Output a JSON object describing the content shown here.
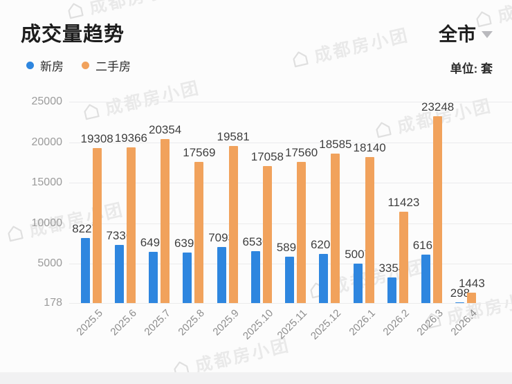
{
  "header": {
    "title": "成交量趋势",
    "region": "全市",
    "unit_label": "单位: 套"
  },
  "legend": [
    {
      "label": "新房",
      "color": "#2E86DF"
    },
    {
      "label": "二手房",
      "color": "#F1A25C"
    }
  ],
  "watermark": {
    "text": "成都房小团"
  },
  "chart_data": {
    "type": "bar",
    "title": "成交量趋势",
    "categories": [
      "2025.5",
      "2025.6",
      "2025.7",
      "2025.8",
      "2025.9",
      "2025.10",
      "2025.11",
      "2025.12",
      "2026.1",
      "2026.2",
      "2026.3",
      "2026.4"
    ],
    "series": [
      {
        "name": "新房",
        "color": "#2E86DF",
        "values": [
          8227,
          7336,
          6491,
          6398,
          7093,
          6536,
          5898,
          6203,
          5007,
          3354,
          6165,
          298
        ]
      },
      {
        "name": "二手房",
        "color": "#F1A25C",
        "values": [
          19308,
          19366,
          20354,
          17569,
          19581,
          17058,
          17560,
          18585,
          18140,
          11423,
          23248,
          1443
        ]
      }
    ],
    "yticks": [
      178,
      5000,
      10000,
      15000,
      20000,
      25000
    ],
    "ylim": [
      178,
      25000
    ],
    "xlabel": "",
    "ylabel": "",
    "unit": "套",
    "grid": true,
    "legend_position": "top-left",
    "value_labels": true
  }
}
